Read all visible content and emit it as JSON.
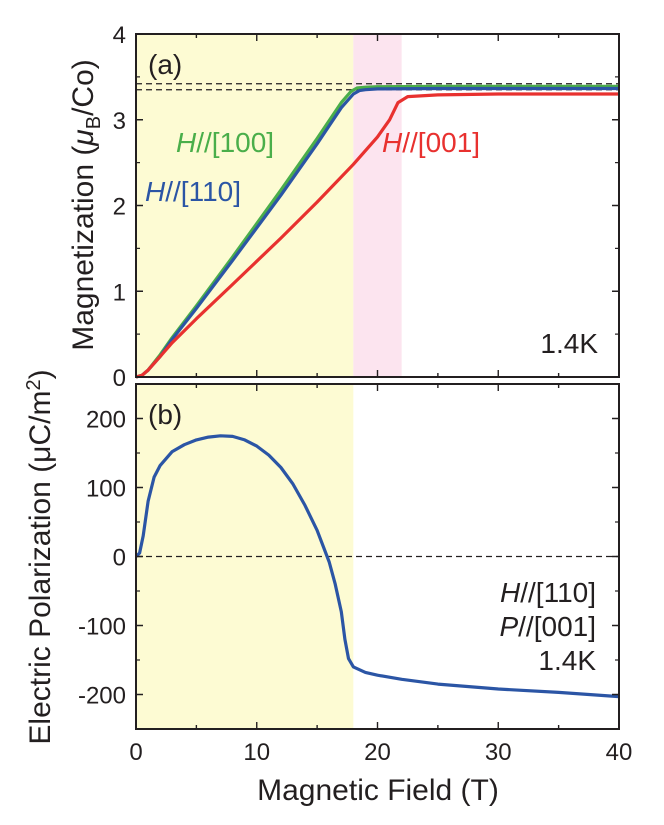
{
  "chart_data": [
    {
      "panel_label": "(a)",
      "type": "line",
      "xlabel": "",
      "ylabel": {
        "prefix": "Magnetization (",
        "mu": "μ",
        "sub": "B",
        "suffix": "/Co)"
      },
      "xlim": [
        0,
        40
      ],
      "ylim": [
        0,
        4
      ],
      "yticks": [
        "0",
        "1",
        "2",
        "3",
        "4"
      ],
      "temperature": "1.4K",
      "shaded_regions": [
        {
          "range": [
            0,
            18
          ],
          "color": "#fdfbd3"
        },
        {
          "range": [
            18,
            22
          ],
          "color": "#fce4ef"
        }
      ],
      "reference_lines": [
        3.35,
        3.42
      ],
      "series": [
        {
          "name": "H//[100]",
          "label_italic": "H",
          "label_rest": "//[100]",
          "color": "#4aae4a",
          "x": [
            0,
            0.5,
            1,
            2,
            3,
            5,
            8,
            12,
            15,
            17,
            17.8,
            18.3,
            19,
            20,
            25,
            30,
            35,
            40
          ],
          "y": [
            0,
            0.02,
            0.08,
            0.26,
            0.46,
            0.83,
            1.4,
            2.18,
            2.78,
            3.2,
            3.33,
            3.37,
            3.38,
            3.385,
            3.39,
            3.39,
            3.39,
            3.39
          ]
        },
        {
          "name": "H//[110]",
          "label_italic": "H",
          "label_rest": "//[110]",
          "color": "#2b55a5",
          "x": [
            0,
            0.5,
            1,
            2,
            3,
            5,
            8,
            12,
            15,
            17,
            18,
            18.5,
            19,
            20,
            25,
            30,
            35,
            40
          ],
          "y": [
            0,
            0.02,
            0.08,
            0.24,
            0.44,
            0.8,
            1.36,
            2.12,
            2.72,
            3.14,
            3.3,
            3.34,
            3.35,
            3.36,
            3.365,
            3.365,
            3.365,
            3.365
          ]
        },
        {
          "name": "H//[001]",
          "label_italic": "H",
          "label_rest": "//[001]",
          "color": "#e8312f",
          "x": [
            0,
            0.5,
            1,
            2,
            3,
            5,
            8,
            12,
            15,
            18,
            20,
            21,
            21.7,
            22.5,
            25,
            30,
            35,
            40
          ],
          "y": [
            0,
            0.02,
            0.08,
            0.24,
            0.4,
            0.68,
            1.08,
            1.62,
            2.04,
            2.48,
            2.8,
            3.0,
            3.2,
            3.27,
            3.29,
            3.3,
            3.3,
            3.3
          ]
        }
      ]
    },
    {
      "panel_label": "(b)",
      "type": "line",
      "xlabel": "Magnetic Field (T)",
      "ylabel": {
        "prefix": "Electric Polarization (",
        "unit": "μC/m",
        "sup": "2",
        "suffix": ")"
      },
      "xlim": [
        0,
        40
      ],
      "ylim": [
        -250,
        250
      ],
      "xticks": [
        "0",
        "10",
        "20",
        "30",
        "40"
      ],
      "yticks": [
        "-200",
        "-100",
        "0",
        "100",
        "200"
      ],
      "annotations": [
        {
          "italic": "H",
          "rest": "//[110]"
        },
        {
          "italic": "P",
          "rest": "//[001]"
        },
        {
          "italic": "",
          "rest": "1.4K"
        }
      ],
      "shaded_regions": [
        {
          "range": [
            0,
            18
          ],
          "color": "#fdfbd3"
        }
      ],
      "reference_lines": [
        0
      ],
      "series": [
        {
          "color": "#2b55a5",
          "x": [
            0,
            0.3,
            0.6,
            1,
            1.5,
            2,
            3,
            4,
            5,
            6,
            7,
            8,
            9,
            10,
            11,
            12,
            13,
            14,
            15,
            16,
            16.5,
            17,
            17.3,
            17.6,
            18,
            19,
            20,
            22,
            25,
            30,
            35,
            40
          ],
          "y": [
            0,
            5,
            30,
            80,
            115,
            132,
            152,
            162,
            169,
            173,
            175,
            174,
            169,
            160,
            147,
            129,
            105,
            74,
            38,
            -8,
            -40,
            -80,
            -120,
            -148,
            -160,
            -168,
            -172,
            -178,
            -185,
            -192,
            -197,
            -203
          ]
        }
      ]
    }
  ]
}
